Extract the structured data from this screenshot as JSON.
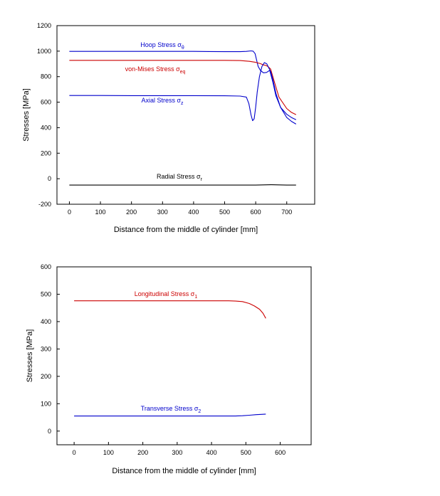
{
  "chart_data": [
    {
      "type": "line",
      "xlabel": "Distance from the middle of cylinder [mm]",
      "ylabel": "Stresses [MPa]",
      "xlim": [
        -40,
        790
      ],
      "ylim": [
        -200,
        1200
      ],
      "xticks": [
        0,
        100,
        200,
        300,
        400,
        500,
        600,
        700
      ],
      "yticks": [
        -200,
        0,
        200,
        400,
        600,
        800,
        1000,
        1200
      ],
      "grid": false,
      "series": [
        {
          "name": "Hoop Stress σθ",
          "label": {
            "main": "Hoop Stress σ",
            "sub": "θ"
          },
          "color": "#0000cc",
          "x": [
            0,
            100,
            200,
            300,
            400,
            450,
            500,
            550,
            570,
            585,
            592,
            598,
            603,
            608,
            615,
            625,
            635,
            645,
            655,
            665,
            680,
            700,
            715,
            730
          ],
          "y": [
            998,
            998,
            998,
            998,
            998,
            997,
            996,
            996,
            998,
            1002,
            1000,
            980,
            930,
            880,
            850,
            830,
            833,
            850,
            760,
            650,
            560,
            505,
            480,
            462
          ]
        },
        {
          "name": "von-Mises Stress σeq",
          "label": {
            "main": "von-Mises Stress σ",
            "sub": "eq"
          },
          "color": "#cc0000",
          "x": [
            0,
            100,
            200,
            300,
            400,
            500,
            550,
            580,
            600,
            615,
            625,
            633,
            640,
            648,
            660,
            675,
            700,
            715,
            730
          ],
          "y": [
            928,
            928,
            928,
            928,
            928,
            928,
            926,
            920,
            912,
            902,
            892,
            888,
            878,
            860,
            760,
            640,
            550,
            520,
            502
          ]
        },
        {
          "name": "Axial Stress σz",
          "label": {
            "main": "Axial Stress σ",
            "sub": "z"
          },
          "color": "#0000cc",
          "x": [
            0,
            100,
            200,
            300,
            400,
            500,
            550,
            570,
            578,
            585,
            590,
            595,
            600,
            605,
            612,
            620,
            628,
            636,
            642,
            648,
            655,
            665,
            680,
            700,
            715,
            730
          ],
          "y": [
            652,
            652,
            651,
            651,
            651,
            650,
            648,
            640,
            590,
            500,
            455,
            470,
            560,
            680,
            800,
            880,
            910,
            900,
            868,
            840,
            780,
            670,
            560,
            480,
            450,
            428
          ]
        },
        {
          "name": "Radial Stress σr",
          "label": {
            "main": "Radial Stress σ",
            "sub": "r"
          },
          "color": "#000000",
          "x": [
            0,
            100,
            200,
            300,
            400,
            500,
            600,
            650,
            700,
            730
          ],
          "y": [
            -50,
            -50,
            -50,
            -50,
            -50,
            -50,
            -50,
            -47,
            -50,
            -50
          ]
        }
      ]
    },
    {
      "type": "line",
      "xlabel": "Distance from the middle of cylinder [mm]",
      "ylabel": "Stresses [MPa]",
      "xlim": [
        -50,
        690
      ],
      "ylim": [
        -50,
        600
      ],
      "xticks": [
        0,
        100,
        200,
        300,
        400,
        500,
        600
      ],
      "yticks": [
        0,
        100,
        200,
        300,
        400,
        500,
        600
      ],
      "grid": false,
      "series": [
        {
          "name": "Longitudinal Stress σ1",
          "label": {
            "main": "Longitudinal Stress σ",
            "sub": "1"
          },
          "color": "#cc0000",
          "x": [
            0,
            100,
            200,
            300,
            400,
            450,
            470,
            490,
            510,
            525,
            540,
            550,
            558
          ],
          "y": [
            476,
            476,
            476,
            476,
            476,
            476,
            475,
            473,
            466,
            457,
            445,
            430,
            412
          ]
        },
        {
          "name": "Transverse Stress σ2",
          "label": {
            "main": "Transverse Stress σ",
            "sub": "2"
          },
          "color": "#0000cc",
          "x": [
            0,
            100,
            200,
            300,
            400,
            450,
            470,
            490,
            510,
            530,
            545,
            558
          ],
          "y": [
            55,
            55,
            55,
            55,
            55,
            55,
            55,
            56,
            58,
            60,
            61,
            62
          ]
        }
      ]
    }
  ]
}
